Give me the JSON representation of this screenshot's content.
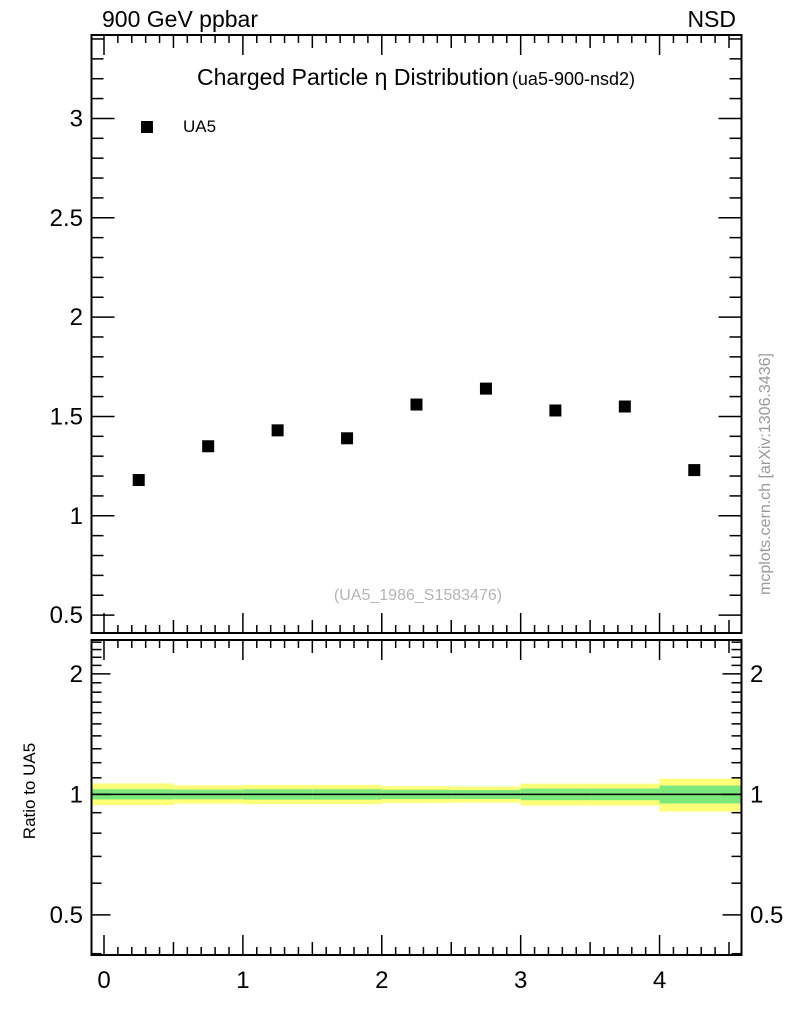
{
  "header": {
    "left": "900 GeV ppbar",
    "right": "NSD"
  },
  "title": {
    "main": "Charged Particle η Distribution",
    "sub": "(ua5-900-nsd2)"
  },
  "legend": [
    {
      "label": "UA5",
      "marker": "filled-square",
      "color": "#000000"
    }
  ],
  "watermark": "(UA5_1986_S1583476)",
  "side_note": "mcplots.cern.ch [arXiv:1306.3436]",
  "colors": {
    "axis": "#000000",
    "text": "#000000",
    "watermark": "#b4b4b4",
    "side_note": "#999999",
    "band_outer": "#ffff78",
    "band_inner": "#7ce87c",
    "reference_line": "#000000"
  },
  "chart_data": [
    {
      "type": "scatter",
      "panel": "main",
      "title": "Charged Particle η Distribution (ua5-900-nsd2)",
      "series": [
        {
          "name": "UA5",
          "marker": "filled-square",
          "color": "#000000",
          "x": [
            0.25,
            0.75,
            1.25,
            1.75,
            2.25,
            2.75,
            3.25,
            3.75,
            4.25
          ],
          "y": [
            1.18,
            1.35,
            1.43,
            1.39,
            1.56,
            1.64,
            1.53,
            1.55,
            1.23
          ]
        }
      ],
      "xlim": [
        -0.09,
        4.59
      ],
      "ylim": [
        0.41,
        3.42
      ],
      "xticks": [
        0,
        1,
        2,
        3,
        4
      ],
      "yticks": [
        0.5,
        1,
        1.5,
        2,
        2.5,
        3
      ],
      "minor_step": 0.1,
      "grid": false,
      "legend_position": "top-left"
    },
    {
      "type": "band",
      "panel": "ratio",
      "ylabel": "Ratio to UA5",
      "yscale": "log",
      "xlim": [
        -0.09,
        4.59
      ],
      "ylim": [
        0.397,
        2.43
      ],
      "xticks": [
        0,
        1,
        2,
        3,
        4
      ],
      "yticks": [
        0.5,
        1,
        2
      ],
      "reference_line": 1,
      "bands": [
        {
          "x0": -0.09,
          "x1": 0.5,
          "outer": [
            0.94,
            1.065
          ],
          "inner": [
            0.971,
            1.03
          ]
        },
        {
          "x0": 0.5,
          "x1": 1.0,
          "outer": [
            0.948,
            1.054
          ],
          "inner": [
            0.972,
            1.028
          ]
        },
        {
          "x0": 1.0,
          "x1": 1.5,
          "outer": [
            0.945,
            1.056
          ],
          "inner": [
            0.97,
            1.03
          ]
        },
        {
          "x0": 1.5,
          "x1": 2.0,
          "outer": [
            0.945,
            1.056
          ],
          "inner": [
            0.97,
            1.03
          ]
        },
        {
          "x0": 2.0,
          "x1": 2.5,
          "outer": [
            0.952,
            1.048
          ],
          "inner": [
            0.973,
            1.027
          ]
        },
        {
          "x0": 2.5,
          "x1": 3.0,
          "outer": [
            0.954,
            1.046
          ],
          "inner": [
            0.974,
            1.026
          ]
        },
        {
          "x0": 3.0,
          "x1": 3.5,
          "outer": [
            0.938,
            1.064
          ],
          "inner": [
            0.967,
            1.034
          ]
        },
        {
          "x0": 3.5,
          "x1": 4.0,
          "outer": [
            0.938,
            1.064
          ],
          "inner": [
            0.967,
            1.034
          ]
        },
        {
          "x0": 4.0,
          "x1": 4.59,
          "outer": [
            0.906,
            1.094
          ],
          "inner": [
            0.949,
            1.052
          ]
        }
      ]
    }
  ]
}
